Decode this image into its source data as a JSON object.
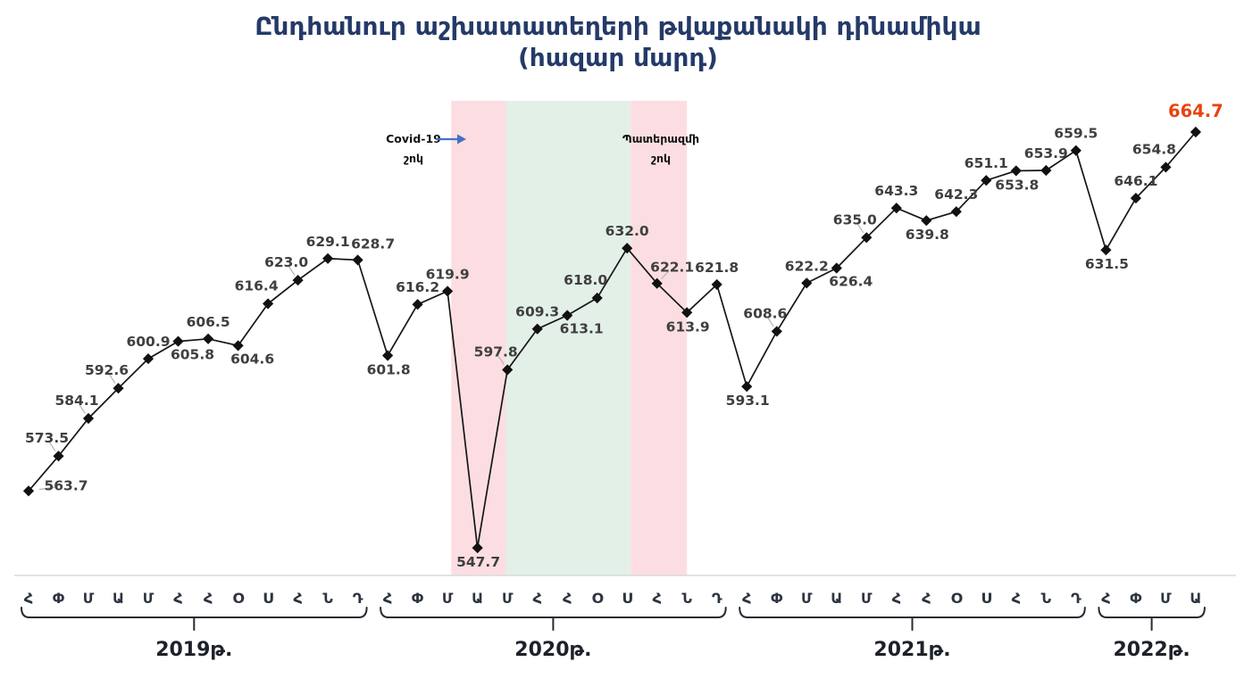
{
  "title": {
    "line1": "Ընդհանուր աշխատատեղերի թվաքանակի դինամիկա",
    "line2": "(հազար մարդ)"
  },
  "colors": {
    "title_navy": "#243a68",
    "line_black": "#161616",
    "label_gray": "#3f3f3f",
    "highlight_red": "#e8430e",
    "arrow_blue": "#4472c4",
    "band_pink": "#fcdee2",
    "band_green": "#e3f0e8",
    "axis_gray": "#d7dade",
    "axis_text": "#2d3440",
    "bracket_dark": "#262b33",
    "leader_gray": "#b3b3b3"
  },
  "chart_data": {
    "type": "line",
    "title": "Ընդհանուր աշխատատեղերի թվաքանակի դինամիկա (հազար մարդ)",
    "ylabel": "հազար մարդ",
    "ylim": [
      540,
      670
    ],
    "grid": false,
    "legend": "none",
    "years": [
      {
        "label": "2019թ.",
        "months": [
          "Հ",
          "Փ",
          "Մ",
          "Ա",
          "Մ",
          "Հ",
          "Հ",
          "Օ",
          "Ս",
          "Հ",
          "Ն",
          "Դ"
        ],
        "values": [
          563.7,
          573.5,
          584.1,
          592.6,
          600.9,
          605.8,
          606.5,
          604.6,
          616.4,
          623.0,
          629.1,
          628.7
        ]
      },
      {
        "label": "2020թ.",
        "months": [
          "Հ",
          "Փ",
          "Մ",
          "Ա",
          "Մ",
          "Հ",
          "Հ",
          "Օ",
          "Ս",
          "Հ",
          "Ն",
          "Դ"
        ],
        "values": [
          601.8,
          616.2,
          619.9,
          547.7,
          597.8,
          609.3,
          613.1,
          618.0,
          632.0,
          622.1,
          613.9,
          621.8
        ]
      },
      {
        "label": "2021թ.",
        "months": [
          "Հ",
          "Փ",
          "Մ",
          "Ա",
          "Մ",
          "Հ",
          "Հ",
          "Օ",
          "Ս",
          "Հ",
          "Ն",
          "Դ"
        ],
        "values": [
          593.1,
          608.6,
          622.2,
          626.4,
          635.0,
          643.3,
          639.8,
          642.3,
          651.1,
          653.8,
          653.9,
          659.5
        ]
      },
      {
        "label": "2022թ.",
        "months": [
          "Հ",
          "Փ",
          "Մ",
          "Ա"
        ],
        "values": [
          631.5,
          646.1,
          654.8,
          664.7
        ]
      }
    ],
    "highlight_last": {
      "value": 664.7,
      "color": "#e8430e"
    },
    "shock_bands": [
      {
        "name": "covid-shock",
        "color": "#fcdee2",
        "from_index": 14.12,
        "to_index": 15.95
      },
      {
        "name": "recovery",
        "color": "#e3f0e8",
        "from_index": 15.95,
        "to_index": 20.12
      },
      {
        "name": "war-shock",
        "color": "#fcdee2",
        "from_index": 20.12,
        "to_index": 22.0
      }
    ],
    "annotations": [
      {
        "id": "covid",
        "line1": "Covid-19",
        "line2": "շոկ",
        "has_arrow": true
      },
      {
        "id": "war",
        "line1": "Պատերազմի",
        "line2": "շոկ",
        "has_arrow": false
      }
    ],
    "label_layout": {
      "hints": [
        "right",
        "above-left",
        "above-left",
        "above-left",
        "above",
        "below-right",
        "above",
        "below-right",
        "above-left",
        "above-left",
        "above",
        "above-right",
        "below",
        "above",
        "above",
        "below",
        "above-left",
        "above",
        "below-right",
        "above-left",
        "above",
        "above-right",
        "below",
        "above",
        "below",
        "above-left",
        "above",
        "below-right",
        "above-left",
        "above",
        "below",
        "above",
        "above",
        "below",
        "above",
        "above",
        "below",
        "above",
        "above-left",
        "above"
      ],
      "leader_indices": [
        0,
        1,
        2,
        3,
        9,
        16,
        21,
        25,
        28
      ]
    }
  }
}
